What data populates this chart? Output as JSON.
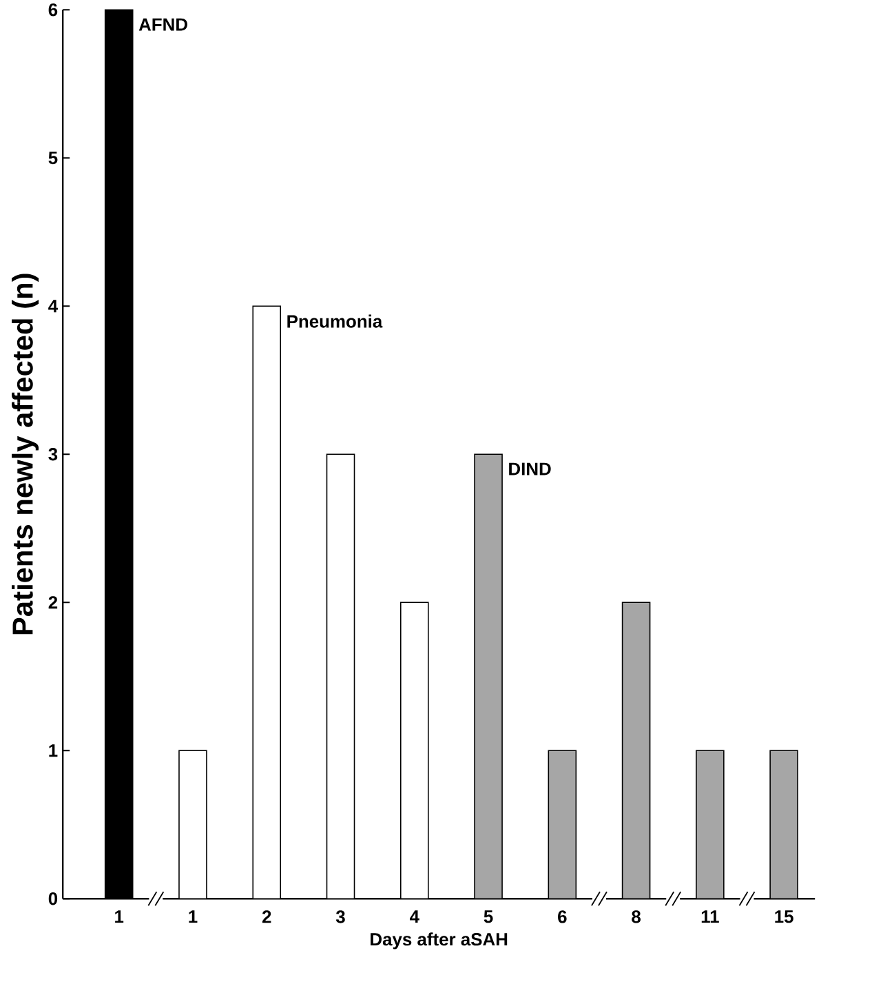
{
  "chart_data": {
    "type": "bar",
    "xlabel": "Days after aSAH",
    "ylabel": "Patients newly affected (n)",
    "categories": [
      "1",
      "1",
      "2",
      "3",
      "4",
      "5",
      "6",
      "8",
      "11",
      "15"
    ],
    "series": [
      {
        "name": "AFND",
        "color": "#000000",
        "values": [
          6,
          null,
          null,
          null,
          null,
          null,
          null,
          null,
          null,
          null
        ]
      },
      {
        "name": "Pneumonia",
        "color": "#ffffff",
        "values": [
          null,
          1,
          4,
          3,
          2,
          null,
          null,
          null,
          null,
          null
        ]
      },
      {
        "name": "DIND",
        "color": "#a6a6a6",
        "values": [
          null,
          null,
          null,
          null,
          null,
          3,
          1,
          2,
          1,
          1
        ]
      }
    ],
    "ylim": [
      0,
      6
    ],
    "yticks": [
      0,
      1,
      2,
      3,
      4,
      5,
      6
    ],
    "grid": false
  }
}
